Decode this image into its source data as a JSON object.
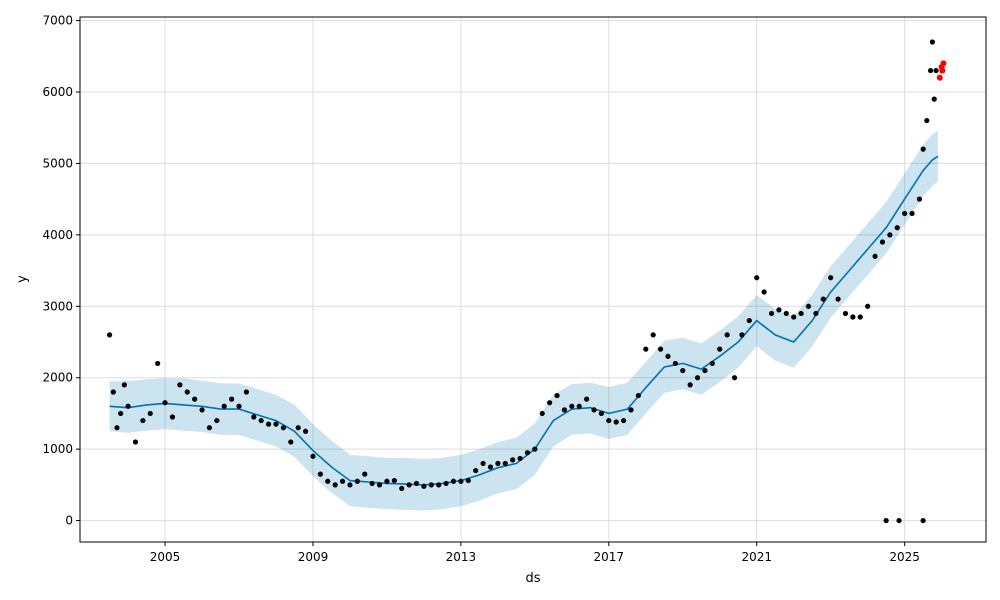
{
  "chart_data": {
    "type": "line",
    "title": "",
    "xlabel": "ds",
    "ylabel": "y",
    "xlim": [
      2002.7,
      2027.2
    ],
    "ylim": [
      -300,
      7050
    ],
    "grid": true,
    "x_ticks": [
      2005,
      2009,
      2013,
      2017,
      2021,
      2025
    ],
    "x_tick_labels": [
      "2005",
      "2009",
      "2013",
      "2017",
      "2021",
      "2025"
    ],
    "y_ticks": [
      0,
      1000,
      2000,
      3000,
      4000,
      5000,
      6000,
      7000
    ],
    "y_tick_labels": [
      "0",
      "1000",
      "2000",
      "3000",
      "4000",
      "5000",
      "6000",
      "7000"
    ],
    "colors": {
      "observed": "#000000",
      "forecast": "#0072B2",
      "uncertainty": "#0072B2",
      "highlight": "#ff0000"
    },
    "series": [
      {
        "role": "forecast",
        "x": [
          2003.5,
          2004.0,
          2004.5,
          2005.0,
          2005.5,
          2006.0,
          2006.5,
          2007.0,
          2007.5,
          2008.0,
          2008.5,
          2009.0,
          2009.5,
          2010.0,
          2010.5,
          2011.0,
          2011.5,
          2012.0,
          2012.5,
          2013.0,
          2013.5,
          2014.0,
          2014.5,
          2015.0,
          2015.5,
          2016.0,
          2016.5,
          2017.0,
          2017.5,
          2018.0,
          2018.5,
          2019.0,
          2019.5,
          2020.0,
          2020.5,
          2021.0,
          2021.5,
          2022.0,
          2022.5,
          2023.0,
          2023.5,
          2024.0,
          2024.5,
          2025.0,
          2025.5,
          2025.75,
          2025.9
        ],
        "y": [
          1600,
          1580,
          1620,
          1640,
          1620,
          1600,
          1560,
          1560,
          1480,
          1400,
          1250,
          980,
          750,
          560,
          540,
          520,
          510,
          500,
          520,
          560,
          640,
          740,
          800,
          1000,
          1400,
          1560,
          1580,
          1500,
          1560,
          1860,
          2150,
          2200,
          2120,
          2300,
          2500,
          2800,
          2600,
          2500,
          2800,
          3200,
          3500,
          3800,
          4100,
          4500,
          4900,
          5050,
          5100
        ]
      },
      {
        "role": "uncertainty_upper",
        "x": [
          2003.5,
          2004.0,
          2004.5,
          2005.0,
          2005.5,
          2006.0,
          2006.5,
          2007.0,
          2007.5,
          2008.0,
          2008.5,
          2009.0,
          2009.5,
          2010.0,
          2010.5,
          2011.0,
          2011.5,
          2012.0,
          2012.5,
          2013.0,
          2013.5,
          2014.0,
          2014.5,
          2015.0,
          2015.5,
          2016.0,
          2016.5,
          2017.0,
          2017.5,
          2018.0,
          2018.5,
          2019.0,
          2019.5,
          2020.0,
          2020.5,
          2021.0,
          2021.5,
          2022.0,
          2022.5,
          2023.0,
          2023.5,
          2024.0,
          2024.5,
          2025.0,
          2025.5,
          2025.75,
          2025.9
        ],
        "y": [
          1950,
          1950,
          1980,
          1990,
          1990,
          1960,
          1920,
          1920,
          1840,
          1760,
          1620,
          1350,
          1120,
          920,
          900,
          880,
          880,
          860,
          880,
          920,
          1000,
          1100,
          1160,
          1360,
          1760,
          1910,
          1930,
          1870,
          1930,
          2220,
          2520,
          2560,
          2480,
          2660,
          2860,
          3160,
          2960,
          2860,
          3160,
          3560,
          3860,
          4160,
          4460,
          4860,
          5260,
          5410,
          5460
        ]
      },
      {
        "role": "uncertainty_lower",
        "x": [
          2003.5,
          2004.0,
          2004.5,
          2005.0,
          2005.5,
          2006.0,
          2006.5,
          2007.0,
          2007.5,
          2008.0,
          2008.5,
          2009.0,
          2009.5,
          2010.0,
          2010.5,
          2011.0,
          2011.5,
          2012.0,
          2012.5,
          2013.0,
          2013.5,
          2014.0,
          2014.5,
          2015.0,
          2015.5,
          2016.0,
          2016.5,
          2017.0,
          2017.5,
          2018.0,
          2018.5,
          2019.0,
          2019.5,
          2020.0,
          2020.5,
          2021.0,
          2021.5,
          2022.0,
          2022.5,
          2023.0,
          2023.5,
          2024.0,
          2024.5,
          2025.0,
          2025.5,
          2025.75,
          2025.9
        ],
        "y": [
          1250,
          1230,
          1260,
          1280,
          1260,
          1240,
          1200,
          1200,
          1120,
          1040,
          890,
          620,
          390,
          200,
          180,
          160,
          150,
          140,
          160,
          200,
          280,
          380,
          440,
          640,
          1040,
          1200,
          1220,
          1140,
          1200,
          1500,
          1790,
          1840,
          1760,
          1940,
          2140,
          2440,
          2240,
          2140,
          2440,
          2840,
          3140,
          3440,
          3740,
          4140,
          4540,
          4690,
          4740
        ]
      },
      {
        "role": "observed",
        "x": [
          2003.5,
          2003.6,
          2003.7,
          2003.8,
          2003.9,
          2004.0,
          2004.2,
          2004.4,
          2004.6,
          2004.8,
          2005.0,
          2005.2,
          2005.4,
          2005.6,
          2005.8,
          2006.0,
          2006.2,
          2006.4,
          2006.6,
          2006.8,
          2007.0,
          2007.2,
          2007.4,
          2007.6,
          2007.8,
          2008.0,
          2008.2,
          2008.4,
          2008.6,
          2008.8,
          2009.0,
          2009.2,
          2009.4,
          2009.6,
          2009.8,
          2010.0,
          2010.2,
          2010.4,
          2010.6,
          2010.8,
          2011.0,
          2011.2,
          2011.4,
          2011.6,
          2011.8,
          2012.0,
          2012.2,
          2012.4,
          2012.6,
          2012.8,
          2013.0,
          2013.2,
          2013.4,
          2013.6,
          2013.8,
          2014.0,
          2014.2,
          2014.4,
          2014.6,
          2014.8,
          2015.0,
          2015.2,
          2015.4,
          2015.6,
          2015.8,
          2016.0,
          2016.2,
          2016.4,
          2016.6,
          2016.8,
          2017.0,
          2017.2,
          2017.4,
          2017.6,
          2017.8,
          2018.0,
          2018.2,
          2018.4,
          2018.6,
          2018.8,
          2019.0,
          2019.2,
          2019.4,
          2019.6,
          2019.8,
          2020.0,
          2020.2,
          2020.4,
          2020.6,
          2020.8,
          2021.0,
          2021.2,
          2021.4,
          2021.6,
          2021.8,
          2022.0,
          2022.2,
          2022.4,
          2022.6,
          2022.8,
          2023.0,
          2023.2,
          2023.4,
          2023.6,
          2023.8,
          2024.0,
          2024.2,
          2024.4,
          2024.6,
          2024.8,
          2025.0,
          2025.2,
          2025.4,
          2025.5,
          2025.6,
          2025.7,
          2025.75,
          2025.8,
          2025.85
        ],
        "y": [
          2600,
          1800,
          1300,
          1500,
          1900,
          1600,
          1100,
          1400,
          1500,
          2200,
          1650,
          1450,
          1900,
          1800,
          1700,
          1550,
          1300,
          1400,
          1600,
          1700,
          1600,
          1800,
          1450,
          1400,
          1350,
          1350,
          1300,
          1100,
          1300,
          1250,
          900,
          650,
          550,
          500,
          550,
          500,
          550,
          650,
          520,
          500,
          550,
          560,
          450,
          500,
          520,
          480,
          500,
          500,
          520,
          550,
          550,
          560,
          700,
          800,
          750,
          800,
          800,
          850,
          870,
          950,
          1000,
          1500,
          1650,
          1750,
          1550,
          1600,
          1600,
          1700,
          1550,
          1500,
          1400,
          1380,
          1400,
          1550,
          1750,
          2400,
          2600,
          2400,
          2300,
          2200,
          2100,
          1900,
          2000,
          2100,
          2200,
          2400,
          2600,
          2000,
          2600,
          2800,
          3400,
          3200,
          2900,
          2950,
          2900,
          2850,
          2900,
          3000,
          2900,
          3100,
          3400,
          3100,
          2900,
          2850,
          2850,
          3000,
          3700,
          3900,
          4000,
          4100,
          4300,
          4300,
          4500,
          5200,
          5600,
          6300,
          6700,
          5900,
          6300
        ]
      },
      {
        "role": "observed_outliers",
        "x": [
          2024.5,
          2024.85,
          2025.5
        ],
        "y": [
          0,
          0,
          0
        ]
      },
      {
        "role": "highlight",
        "x": [
          2025.95,
          2026.0,
          2026.02,
          2026.05
        ],
        "y": [
          6200,
          6350,
          6300,
          6400
        ]
      }
    ]
  }
}
